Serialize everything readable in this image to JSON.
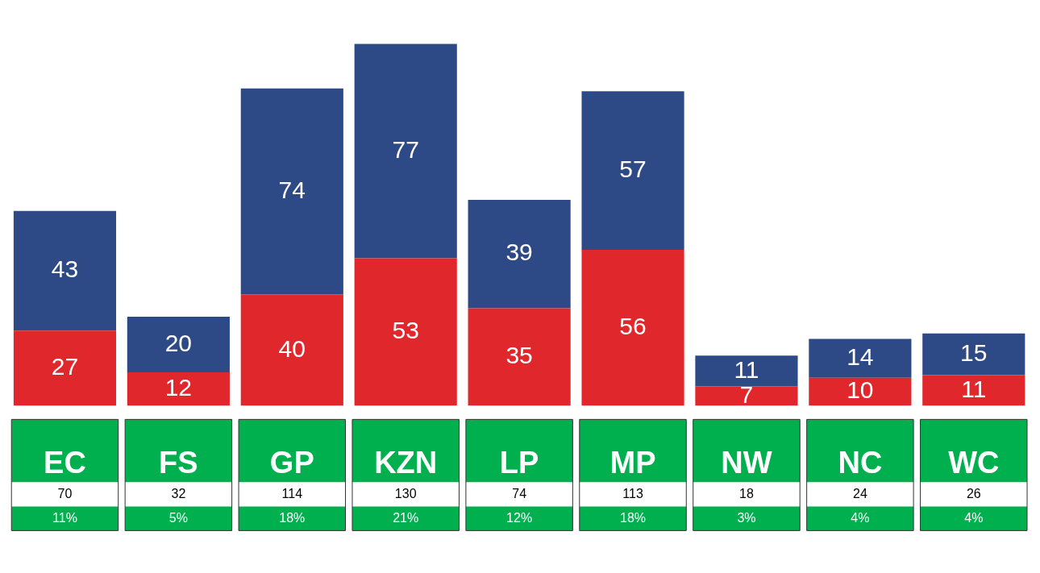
{
  "chart_data": {
    "type": "bar",
    "stacked": true,
    "data_labels": true,
    "categories": [
      "EC",
      "FS",
      "GP",
      "KZN",
      "LP",
      "MP",
      "NW",
      "NC",
      "WC"
    ],
    "series": [
      {
        "color": "#e0272b",
        "values": [
          27,
          12,
          40,
          53,
          35,
          56,
          7,
          10,
          11
        ]
      },
      {
        "color": "#2d4a86",
        "values": [
          43,
          20,
          74,
          77,
          39,
          57,
          11,
          14,
          15
        ]
      }
    ],
    "annotations": [
      "70",
      "32",
      "114",
      "130",
      "74",
      "113",
      "18",
      "24",
      "26",
      "11%",
      "5%",
      "18%",
      "21%",
      "12%",
      "18%",
      "3%",
      "4%",
      "4%"
    ]
  }
}
